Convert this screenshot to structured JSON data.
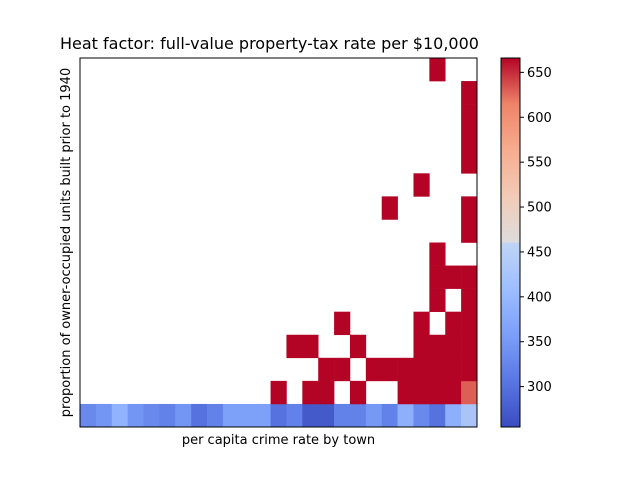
{
  "chart_data": {
    "type": "heatmap",
    "title": "Heat factor: full-value property-tax rate per $10,000",
    "xlabel": "per capita crime rate by town",
    "ylabel": "proportion of owner-occupied units built prior to 1940",
    "n_cols": 25,
    "n_rows": 16,
    "colormap": "coolwarm",
    "vmin": 255,
    "vmax": 666,
    "colorbar_ticks": [
      300,
      350,
      400,
      450,
      500,
      550,
      600,
      650
    ],
    "x_tick_labels": [],
    "y_tick_labels": [],
    "grid": false,
    "cells": [
      {
        "row": 0,
        "col": 0,
        "value": 330
      },
      {
        "row": 0,
        "col": 1,
        "value": 345
      },
      {
        "row": 0,
        "col": 2,
        "value": 390
      },
      {
        "row": 0,
        "col": 3,
        "value": 345
      },
      {
        "row": 0,
        "col": 4,
        "value": 330
      },
      {
        "row": 0,
        "col": 5,
        "value": 320
      },
      {
        "row": 0,
        "col": 6,
        "value": 345
      },
      {
        "row": 0,
        "col": 7,
        "value": 300
      },
      {
        "row": 0,
        "col": 8,
        "value": 320
      },
      {
        "row": 0,
        "col": 9,
        "value": 360
      },
      {
        "row": 0,
        "col": 10,
        "value": 360
      },
      {
        "row": 0,
        "col": 11,
        "value": 360
      },
      {
        "row": 0,
        "col": 12,
        "value": 300
      },
      {
        "row": 0,
        "col": 13,
        "value": 320
      },
      {
        "row": 0,
        "col": 14,
        "value": 270
      },
      {
        "row": 0,
        "col": 15,
        "value": 270
      },
      {
        "row": 0,
        "col": 16,
        "value": 320
      },
      {
        "row": 0,
        "col": 17,
        "value": 320
      },
      {
        "row": 0,
        "col": 18,
        "value": 350
      },
      {
        "row": 0,
        "col": 19,
        "value": 320
      },
      {
        "row": 0,
        "col": 20,
        "value": 385
      },
      {
        "row": 0,
        "col": 21,
        "value": 330
      },
      {
        "row": 0,
        "col": 22,
        "value": 300
      },
      {
        "row": 0,
        "col": 23,
        "value": 385
      },
      {
        "row": 0,
        "col": 24,
        "value": 420
      },
      {
        "row": 1,
        "col": 17,
        "value": 666
      },
      {
        "row": 1,
        "col": 20,
        "value": 666
      },
      {
        "row": 1,
        "col": 21,
        "value": 666
      },
      {
        "row": 1,
        "col": 22,
        "value": 666
      },
      {
        "row": 1,
        "col": 23,
        "value": 666
      },
      {
        "row": 1,
        "col": 24,
        "value": 630
      },
      {
        "row": 1,
        "col": 15,
        "value": 666
      },
      {
        "row": 1,
        "col": 14,
        "value": 666
      },
      {
        "row": 1,
        "col": 12,
        "value": 666
      },
      {
        "row": 2,
        "col": 15,
        "value": 666
      },
      {
        "row": 2,
        "col": 16,
        "value": 666
      },
      {
        "row": 2,
        "col": 18,
        "value": 666
      },
      {
        "row": 2,
        "col": 19,
        "value": 666
      },
      {
        "row": 2,
        "col": 20,
        "value": 666
      },
      {
        "row": 2,
        "col": 21,
        "value": 666
      },
      {
        "row": 2,
        "col": 22,
        "value": 666
      },
      {
        "row": 2,
        "col": 23,
        "value": 666
      },
      {
        "row": 2,
        "col": 24,
        "value": 666
      },
      {
        "row": 3,
        "col": 13,
        "value": 666
      },
      {
        "row": 3,
        "col": 14,
        "value": 666
      },
      {
        "row": 3,
        "col": 17,
        "value": 666
      },
      {
        "row": 3,
        "col": 21,
        "value": 666
      },
      {
        "row": 3,
        "col": 22,
        "value": 666
      },
      {
        "row": 3,
        "col": 23,
        "value": 666
      },
      {
        "row": 3,
        "col": 24,
        "value": 666
      },
      {
        "row": 4,
        "col": 16,
        "value": 666
      },
      {
        "row": 4,
        "col": 21,
        "value": 666
      },
      {
        "row": 4,
        "col": 23,
        "value": 666
      },
      {
        "row": 4,
        "col": 24,
        "value": 666
      },
      {
        "row": 5,
        "col": 22,
        "value": 666
      },
      {
        "row": 5,
        "col": 24,
        "value": 666
      },
      {
        "row": 6,
        "col": 22,
        "value": 666
      },
      {
        "row": 6,
        "col": 23,
        "value": 666
      },
      {
        "row": 6,
        "col": 24,
        "value": 666
      },
      {
        "row": 7,
        "col": 22,
        "value": 666
      },
      {
        "row": 8,
        "col": 24,
        "value": 666
      },
      {
        "row": 9,
        "col": 19,
        "value": 666
      },
      {
        "row": 9,
        "col": 24,
        "value": 666
      },
      {
        "row": 10,
        "col": 21,
        "value": 666
      },
      {
        "row": 11,
        "col": 24,
        "value": 666
      },
      {
        "row": 12,
        "col": 24,
        "value": 666
      },
      {
        "row": 13,
        "col": 24,
        "value": 666
      },
      {
        "row": 14,
        "col": 24,
        "value": 666
      },
      {
        "row": 15,
        "col": 22,
        "value": 666
      }
    ]
  }
}
